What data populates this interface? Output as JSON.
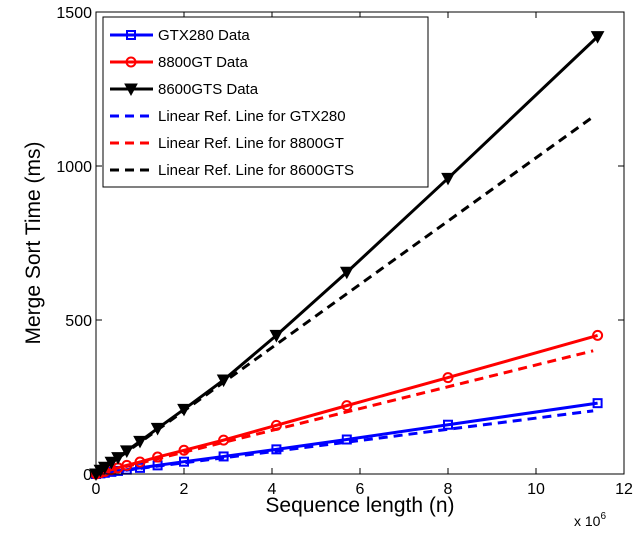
{
  "chart_data": {
    "type": "line",
    "title": "",
    "xlabel": "Sequence length (n)",
    "ylabel": "Merge Sort Time (ms)",
    "x_multiplier": {
      "base": "x 10",
      "exponent": "6"
    },
    "xlim": [
      0,
      12
    ],
    "ylim": [
      0,
      1500
    ],
    "xticks": [
      0,
      2,
      4,
      6,
      8,
      10,
      12
    ],
    "xtick_labels": [
      "0",
      "2",
      "4",
      "6",
      "8",
      "10",
      "12"
    ],
    "yticks": [
      0,
      500,
      1000,
      1500
    ],
    "ytick_labels": [
      "0",
      "500",
      "1000",
      "1500"
    ],
    "grid": false,
    "legend_position": "top-left",
    "series": [
      {
        "name": "GTX280 Data",
        "color": "#0000ff",
        "style": "solid",
        "marker": "square",
        "x": [
          0,
          0.1,
          0.2,
          0.35,
          0.5,
          0.7,
          1.0,
          1.4,
          2.0,
          2.9,
          4.1,
          5.7,
          8.0,
          11.4
        ],
        "y": [
          0,
          2,
          4,
          7,
          10,
          14,
          20,
          28,
          40,
          57,
          80,
          112,
          160,
          230
        ]
      },
      {
        "name": "8800GT Data",
        "color": "#ff0000",
        "style": "solid",
        "marker": "circle",
        "x": [
          0,
          0.1,
          0.2,
          0.35,
          0.5,
          0.7,
          1.0,
          1.4,
          2.0,
          2.9,
          4.1,
          5.7,
          8.0,
          11.4
        ],
        "y": [
          0,
          4,
          8,
          14,
          20,
          28,
          39,
          55,
          77,
          110,
          158,
          222,
          313,
          450
        ]
      },
      {
        "name": "8600GTS Data",
        "color": "#000000",
        "style": "solid",
        "marker": "triangle-down",
        "x": [
          0,
          0.1,
          0.2,
          0.35,
          0.5,
          0.7,
          1.0,
          1.4,
          2.0,
          2.9,
          4.1,
          5.7,
          8.0,
          11.4
        ],
        "y": [
          0,
          12,
          22,
          38,
          53,
          75,
          106,
          148,
          210,
          305,
          450,
          655,
          960,
          1420
        ]
      },
      {
        "name": "Linear Ref. Line for GTX280",
        "color": "#0000ff",
        "style": "dashed",
        "marker": "none",
        "x": [
          0,
          11.3
        ],
        "y": [
          0,
          205
        ]
      },
      {
        "name": "Linear Ref. Line for 8800GT",
        "color": "#ff0000",
        "style": "dashed",
        "marker": "none",
        "x": [
          0,
          11.3
        ],
        "y": [
          0,
          400
        ]
      },
      {
        "name": "Linear Ref. Line for 8600GTS",
        "color": "#000000",
        "style": "dashed",
        "marker": "none",
        "x": [
          0,
          11.3
        ],
        "y": [
          0,
          1160
        ]
      }
    ]
  }
}
